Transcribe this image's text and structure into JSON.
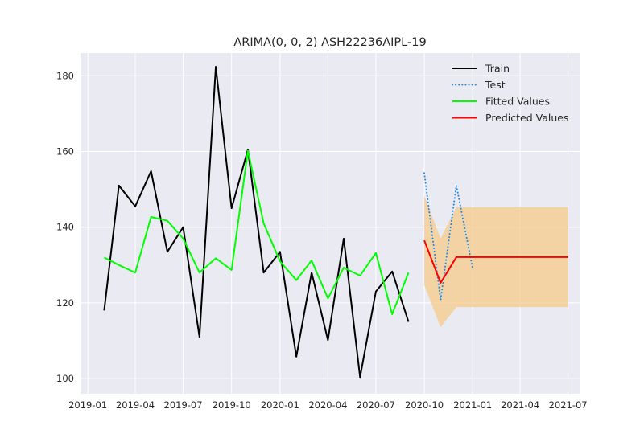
{
  "chart_data": {
    "type": "line",
    "title": "ARIMA(0, 0, 2) ASH22236AIPL-19",
    "xlabel": "",
    "ylabel": "",
    "xlim": [
      "2018-12-18",
      "2021-07-23"
    ],
    "ylim": [
      96,
      186
    ],
    "grid": true,
    "legend_position": "top-right",
    "x_ticks": [
      {
        "date": "2019-01-01",
        "label": "2019-01"
      },
      {
        "date": "2019-04-01",
        "label": "2019-04"
      },
      {
        "date": "2019-07-01",
        "label": "2019-07"
      },
      {
        "date": "2019-10-01",
        "label": "2019-10"
      },
      {
        "date": "2020-01-01",
        "label": "2020-01"
      },
      {
        "date": "2020-04-01",
        "label": "2020-04"
      },
      {
        "date": "2020-07-01",
        "label": "2020-07"
      },
      {
        "date": "2020-10-01",
        "label": "2020-10"
      },
      {
        "date": "2021-01-01",
        "label": "2021-01"
      },
      {
        "date": "2021-04-01",
        "label": "2021-04"
      },
      {
        "date": "2021-07-01",
        "label": "2021-07"
      }
    ],
    "y_ticks": [
      100,
      120,
      140,
      160,
      180
    ],
    "series": [
      {
        "name": "Train",
        "color": "#000000",
        "style": "solid",
        "x": [
          "2019-02-01",
          "2019-03-01",
          "2019-04-01",
          "2019-05-01",
          "2019-06-01",
          "2019-07-01",
          "2019-08-01",
          "2019-09-01",
          "2019-10-01",
          "2019-11-01",
          "2019-12-01",
          "2020-01-01",
          "2020-02-01",
          "2020-03-01",
          "2020-04-01",
          "2020-05-01",
          "2020-06-01",
          "2020-07-01",
          "2020-08-01",
          "2020-09-01"
        ],
        "y": [
          118,
          151,
          145.5,
          154.8,
          133.5,
          140,
          111,
          182.4,
          145,
          160.5,
          128,
          133.5,
          105.8,
          128,
          110.2,
          137,
          100.4,
          123,
          128.3,
          115
        ]
      },
      {
        "name": "Test",
        "color": "#1e88e5",
        "style": "dotted",
        "x": [
          "2020-10-01",
          "2020-11-01",
          "2020-12-01",
          "2021-01-01"
        ],
        "y": [
          154.3,
          120.8,
          151,
          129
        ]
      },
      {
        "name": "Fitted Values",
        "color": "#00ff00",
        "style": "solid",
        "x": [
          "2019-02-01",
          "2019-03-01",
          "2019-04-01",
          "2019-05-01",
          "2019-06-01",
          "2019-07-01",
          "2019-08-01",
          "2019-09-01",
          "2019-10-01",
          "2019-11-01",
          "2019-12-01",
          "2020-01-01",
          "2020-02-01",
          "2020-03-01",
          "2020-04-01",
          "2020-05-01",
          "2020-06-01",
          "2020-07-01",
          "2020-08-01",
          "2020-09-01"
        ],
        "y": [
          132,
          130,
          128,
          142.7,
          141.7,
          137,
          128,
          131.8,
          128.7,
          160.2,
          141,
          131,
          126,
          131.2,
          121.2,
          129.3,
          127.2,
          133.2,
          117,
          128
        ]
      },
      {
        "name": "Predicted Values",
        "color": "#ff0000",
        "style": "solid",
        "x": [
          "2020-10-01",
          "2020-11-01",
          "2020-12-01",
          "2021-01-01",
          "2021-02-01",
          "2021-03-01",
          "2021-04-01",
          "2021-05-01",
          "2021-06-01",
          "2021-07-01"
        ],
        "y": [
          136.5,
          125.3,
          132.1,
          132.1,
          132.1,
          132.1,
          132.1,
          132.1,
          132.1,
          132.1
        ]
      }
    ],
    "confidence_band": {
      "color": "#f5c98a",
      "x": [
        "2020-10-01",
        "2020-11-01",
        "2020-12-01",
        "2021-01-01",
        "2021-02-01",
        "2021-03-01",
        "2021-04-01",
        "2021-05-01",
        "2021-06-01",
        "2021-07-01"
      ],
      "upper": [
        148.3,
        137.0,
        145.3,
        145.3,
        145.3,
        145.3,
        145.3,
        145.3,
        145.3,
        145.3
      ],
      "lower": [
        124.7,
        113.6,
        118.9,
        118.9,
        118.9,
        118.9,
        118.9,
        118.9,
        118.9,
        118.9
      ]
    },
    "colors": {
      "plot_background": "#eaeaf2",
      "grid": "#ffffff"
    }
  }
}
